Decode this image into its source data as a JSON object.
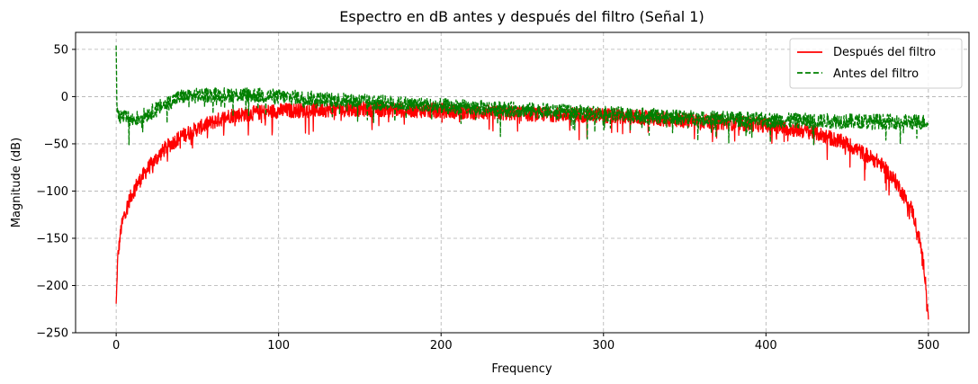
{
  "chart_data": {
    "type": "line",
    "title": "Espectro en dB antes y después del filtro (Señal 1)",
    "xlabel": "Frequency",
    "ylabel": "Magnitude (dB)",
    "xlim": [
      -25,
      525
    ],
    "ylim": [
      -250,
      68
    ],
    "xticks": [
      0,
      100,
      200,
      300,
      400,
      500
    ],
    "xtick_labels": [
      "0",
      "100",
      "200",
      "300",
      "400",
      "500"
    ],
    "yticks": [
      50,
      0,
      -50,
      -100,
      -150,
      -200,
      -250
    ],
    "ytick_labels": [
      "50",
      "0",
      "−50",
      "−100",
      "−150",
      "−200",
      "−250"
    ],
    "grid": true,
    "legend_position": "top-right",
    "series": [
      {
        "name": "Después del filtro",
        "color": "#ff0000",
        "style": "solid",
        "envelope_x": [
          0,
          1,
          3,
          5,
          8,
          12,
          20,
          30,
          40,
          55,
          70,
          100,
          150,
          200,
          250,
          300,
          350,
          400,
          430,
          450,
          470,
          480,
          490,
          495,
          498,
          500
        ],
        "envelope_y": [
          -220,
          -170,
          -140,
          -125,
          -110,
          -95,
          -75,
          -55,
          -42,
          -30,
          -20,
          -15,
          -13,
          -15,
          -18,
          -20,
          -25,
          -30,
          -38,
          -50,
          -70,
          -90,
          -120,
          -155,
          -190,
          -235
        ]
      },
      {
        "name": "Antes del filtro",
        "color": "#008000",
        "style": "dashed",
        "envelope_x": [
          0,
          0.5,
          1,
          5,
          10,
          20,
          30,
          40,
          60,
          80,
          100,
          150,
          200,
          250,
          300,
          350,
          400,
          450,
          500
        ],
        "envelope_y": [
          55,
          -15,
          -20,
          -22,
          -25,
          -18,
          -8,
          0,
          2,
          2,
          0,
          -5,
          -10,
          -14,
          -18,
          -22,
          -25,
          -26,
          -27
        ]
      }
    ]
  }
}
